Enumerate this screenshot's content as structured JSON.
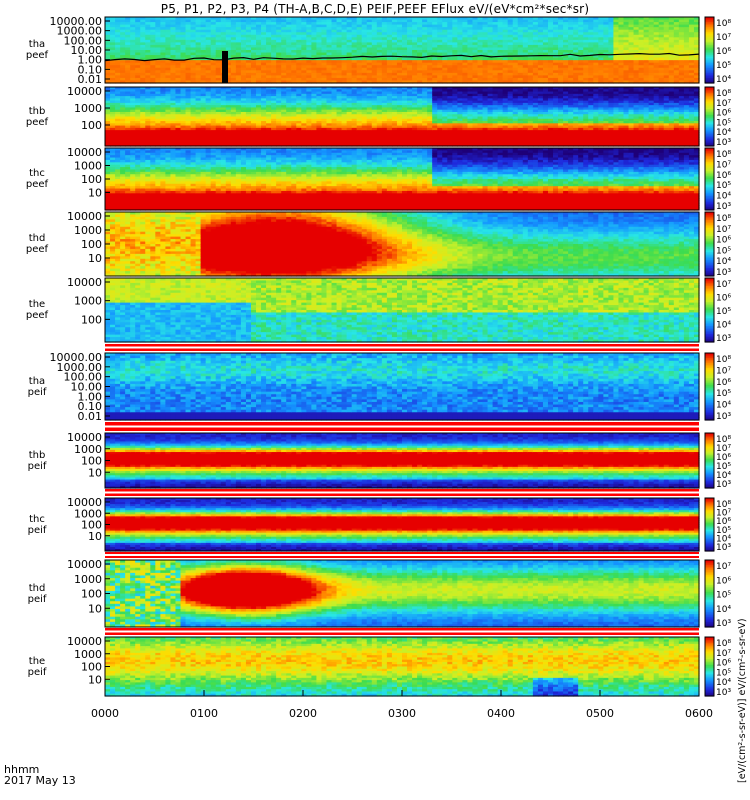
{
  "title": "P5, P1, P2, P3, P4 (TH-A,B,C,D,E) PEIF,PEEF EFlux eV/(eV*cm²*sec*sr)",
  "units_label": "[eV/(cm²-s-sr-eV)] eV/(cm²-s-sr-eV)",
  "time_axis": {
    "label_line1": "hhmm",
    "label_line2": "2017 May 13",
    "ticks": [
      "0000",
      "0100",
      "0200",
      "0300",
      "0400",
      "0500",
      "0600"
    ]
  },
  "chart_data": {
    "type": "heatmap",
    "x_range": [
      "0000",
      "0600"
    ],
    "panels": [
      {
        "label1": "tha",
        "label2": "peef",
        "yticks": [
          "10000.00",
          "1000.00",
          "100.00",
          "10.00",
          "1.00",
          "0.10",
          "0.01"
        ],
        "cbar": [
          "10⁸",
          "10⁷",
          "10⁶",
          "10⁵",
          "10⁴"
        ],
        "mode": "ha_e"
      },
      {
        "label1": "thb",
        "label2": "peef",
        "yticks": [
          "10000",
          "1000",
          "100"
        ],
        "cbar": [
          "10⁸",
          "10⁷",
          "10⁶",
          "10⁵",
          "10⁴",
          "10³"
        ],
        "mode": "e_low"
      },
      {
        "label1": "thc",
        "label2": "peef",
        "yticks": [
          "10000",
          "1000",
          "100",
          "10"
        ],
        "cbar": [
          "10⁸",
          "10⁷",
          "10⁶",
          "10⁵",
          "10⁴",
          "10³"
        ],
        "mode": "e_low"
      },
      {
        "label1": "thd",
        "label2": "peef",
        "yticks": [
          "10000",
          "1000",
          "100",
          "10"
        ],
        "cbar": [
          "10⁸",
          "10⁷",
          "10⁶",
          "10⁵",
          "10⁴",
          "10³"
        ],
        "mode": "hd_e"
      },
      {
        "label1": "the",
        "label2": "peef",
        "yticks": [
          "10000",
          "1000",
          "100"
        ],
        "cbar": [
          "10⁷",
          "10⁶",
          "10⁵",
          "10⁴",
          "10³"
        ],
        "mode": "he_e"
      },
      {
        "label1": "tha",
        "label2": "peif",
        "yticks": [
          "10000.00",
          "1000.00",
          "100.00",
          "10.00",
          "1.00",
          "0.10",
          "0.01"
        ],
        "cbar": [
          "10⁸",
          "10⁷",
          "10⁶",
          "10⁵",
          "10⁴",
          "10³"
        ],
        "mode": "ha_i"
      },
      {
        "label1": "thb",
        "label2": "peif",
        "yticks": [
          "10000",
          "1000",
          "100",
          "10"
        ],
        "cbar": [
          "10⁸",
          "10⁷",
          "10⁶",
          "10⁵",
          "10⁴",
          "10³"
        ],
        "mode": "i_band"
      },
      {
        "label1": "thc",
        "label2": "peif",
        "yticks": [
          "10000",
          "1000",
          "100",
          "10"
        ],
        "cbar": [
          "10⁸",
          "10⁷",
          "10⁶",
          "10⁵",
          "10⁴",
          "10³"
        ],
        "mode": "i_band"
      },
      {
        "label1": "thd",
        "label2": "peif",
        "yticks": [
          "10000",
          "1000",
          "100",
          "10"
        ],
        "cbar": [
          "10⁷",
          "10⁶",
          "10⁵",
          "10⁴",
          "10³"
        ],
        "mode": "hd_i"
      },
      {
        "label1": "the",
        "label2": "peif",
        "yticks": [
          "10000",
          "1000",
          "100",
          "10"
        ],
        "cbar": [
          "10⁸",
          "10⁷",
          "10⁶",
          "10⁵",
          "10⁴",
          "10³"
        ],
        "mode": "he_i"
      }
    ]
  }
}
